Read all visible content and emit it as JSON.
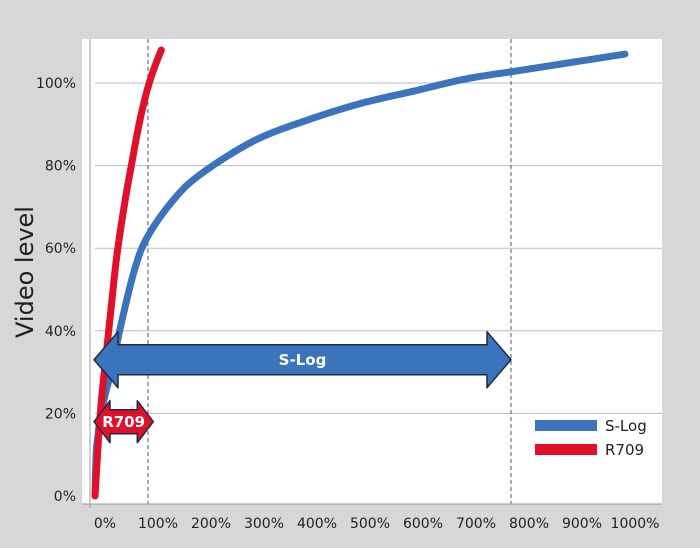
{
  "chart_data": {
    "type": "line",
    "title": "",
    "xlabel": "",
    "ylabel": "Video level",
    "x_ticks": [
      "0%",
      "100%",
      "200%",
      "300%",
      "400%",
      "500%",
      "600%",
      "700%",
      "800%",
      "900%",
      "1000%"
    ],
    "y_ticks": [
      "0%",
      "20%",
      "40%",
      "60%",
      "80%",
      "100%"
    ],
    "xlim": [
      0,
      1000
    ],
    "ylim": [
      0,
      110
    ],
    "grid": true,
    "legend_position": "bottom-right",
    "reference_lines_x": [
      115,
      800
    ],
    "series": [
      {
        "name": "S-Log",
        "color": "#3b74bd",
        "x": [
          0,
          2,
          5,
          10,
          20,
          30,
          50,
          75,
          100,
          150,
          200,
          300,
          400,
          500,
          600,
          700,
          800,
          900,
          1000
        ],
        "y": [
          0,
          10,
          14,
          19,
          25,
          30,
          42,
          55,
          63,
          72,
          78,
          86,
          91,
          95,
          98,
          101,
          103,
          105,
          107
        ]
      },
      {
        "name": "R709",
        "color": "#e0102a",
        "x": [
          0,
          10,
          20,
          30,
          40,
          50,
          60,
          70,
          80,
          90,
          100,
          110,
          125
        ],
        "y": [
          0,
          20,
          33,
          45,
          57,
          66,
          74,
          81,
          88,
          94,
          99,
          103,
          108
        ]
      }
    ],
    "annotations": [
      {
        "text": "S-Log",
        "x_start": 0,
        "x_end": 800,
        "y": 33,
        "color": "#3b74bd"
      },
      {
        "text": "R709",
        "x_start": 0,
        "x_end": 125,
        "y": 18,
        "color": "#e0102a"
      }
    ]
  }
}
